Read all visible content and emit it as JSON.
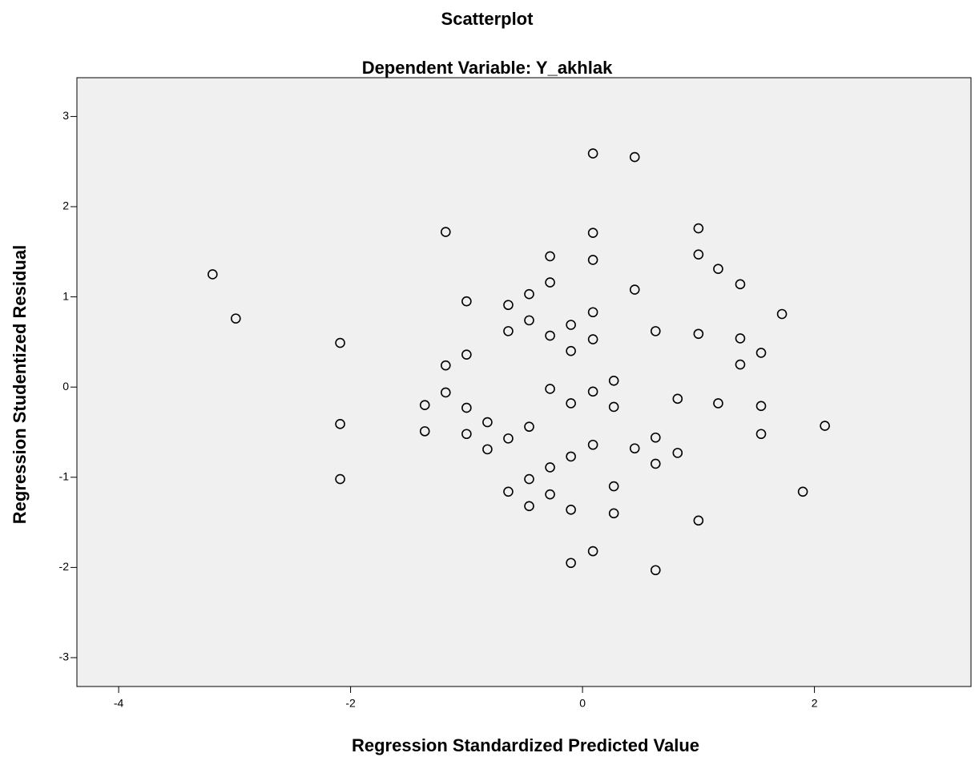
{
  "chart_data": {
    "type": "scatter",
    "title": "Scatterplot",
    "subtitle": "Dependent Variable: Y_akhlak",
    "x_label": "Regression Standardized Predicted Value",
    "y_label": "Regression Studentized Residual",
    "xlim": [
      -4.36,
      3.35
    ],
    "ylim": [
      -3.32,
      3.43
    ],
    "xticks": [
      -4,
      -2,
      0,
      2
    ],
    "yticks": [
      -3,
      -2,
      -1,
      0,
      1,
      2,
      3
    ],
    "color": "#000000",
    "background": "#f0f0f0",
    "x": [
      -3.19,
      -2.99,
      -2.09,
      -2.09,
      -2.09,
      -1.36,
      -1.36,
      -1.18,
      -1.18,
      -1.18,
      -1.0,
      -1.0,
      -1.0,
      -1.0,
      -0.82,
      -0.82,
      -0.64,
      -0.64,
      -0.64,
      -0.64,
      -0.46,
      -0.46,
      -0.46,
      -0.46,
      -0.46,
      -0.28,
      -0.28,
      -0.28,
      -0.28,
      -0.28,
      -0.28,
      -0.1,
      -0.1,
      -0.1,
      -0.1,
      -0.1,
      -0.1,
      0.09,
      0.09,
      0.09,
      0.09,
      0.09,
      0.09,
      0.09,
      0.09,
      0.27,
      0.27,
      0.27,
      0.27,
      0.45,
      0.45,
      0.45,
      0.63,
      0.63,
      0.63,
      0.63,
      0.82,
      0.82,
      1.0,
      1.0,
      1.0,
      1.0,
      1.17,
      1.17,
      1.36,
      1.36,
      1.36,
      1.54,
      1.54,
      1.54,
      1.72,
      1.9,
      2.09
    ],
    "values": [
      1.25,
      0.76,
      0.49,
      -0.41,
      -1.02,
      -0.2,
      -0.49,
      1.72,
      0.24,
      -0.06,
      0.95,
      0.36,
      -0.23,
      -0.52,
      -0.39,
      -0.69,
      0.91,
      0.62,
      -0.57,
      -1.16,
      1.03,
      0.74,
      -0.44,
      -1.02,
      -1.32,
      1.45,
      1.16,
      0.57,
      -0.02,
      -0.89,
      -1.19,
      0.69,
      0.4,
      -0.18,
      -0.77,
      -1.36,
      -1.95,
      2.59,
      1.71,
      1.41,
      0.83,
      0.53,
      -0.05,
      -0.64,
      -1.82,
      0.07,
      -0.22,
      -1.1,
      -1.4,
      2.55,
      1.08,
      -0.68,
      0.62,
      -0.56,
      -0.85,
      -2.03,
      -0.13,
      -0.73,
      1.76,
      1.47,
      0.59,
      -1.48,
      1.31,
      -0.18,
      1.14,
      0.54,
      0.25,
      0.38,
      -0.21,
      -0.52,
      0.81,
      -1.16,
      -0.43
    ]
  }
}
